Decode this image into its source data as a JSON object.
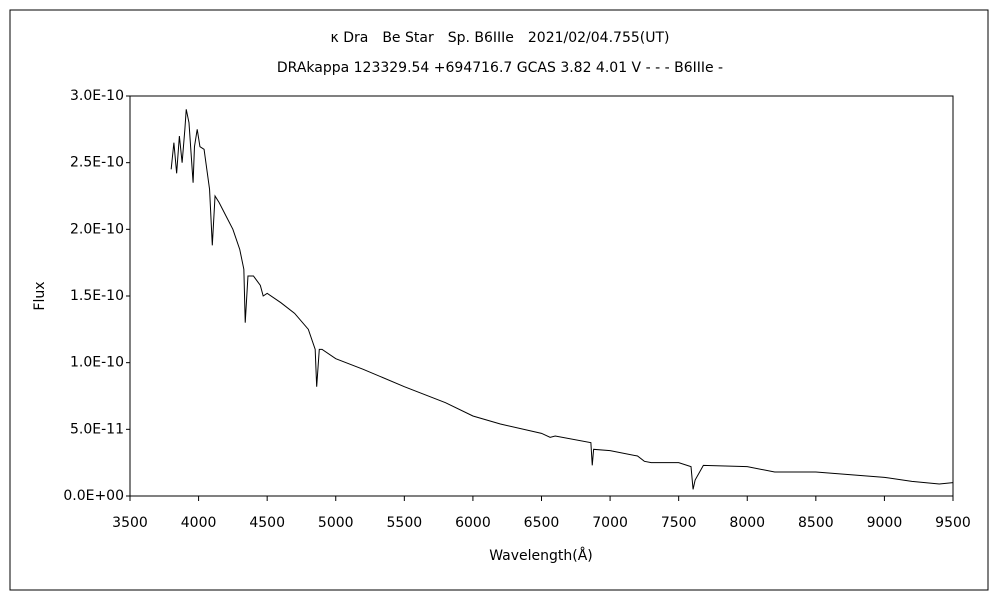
{
  "chart_data": {
    "type": "line",
    "title": "κ Dra　Be Star　Sp. B6IIIe　2021/02/04.755(UT)",
    "subtitle": "DRAkappa 123329.54 +694716.7 GCAS 3.82 4.01 V - - - B6IIIe -",
    "x_label": "Wavelength(Å)",
    "y_label": "Flux",
    "color": "#000000",
    "xlim": [
      3500,
      9500
    ],
    "xticks": [
      3500,
      4000,
      4500,
      5000,
      5500,
      6000,
      6500,
      7000,
      7500,
      8000,
      8500,
      9000,
      9500
    ],
    "ylim": [
      0,
      3e-10
    ],
    "yticks": [
      {
        "value": 0,
        "label": "0.0E+00"
      },
      {
        "value": 5e-11,
        "label": "5.0E-11"
      },
      {
        "value": 1e-10,
        "label": "1.0E-10"
      },
      {
        "value": 1.5e-10,
        "label": "1.5E-10"
      },
      {
        "value": 2e-10,
        "label": "2.0E-10"
      },
      {
        "value": 2.5e-10,
        "label": "2.5E-10"
      },
      {
        "value": 3e-10,
        "label": "3.0E-10"
      }
    ],
    "grid": false,
    "x": [
      3800,
      3820,
      3840,
      3860,
      3880,
      3900,
      3910,
      3930,
      3950,
      3960,
      3970,
      3990,
      4010,
      4040,
      4060,
      4080,
      4100,
      4120,
      4150,
      4200,
      4250,
      4300,
      4330,
      4340,
      4360,
      4400,
      4450,
      4471,
      4500,
      4600,
      4700,
      4800,
      4850,
      4861,
      4880,
      4900,
      5000,
      5200,
      5500,
      5800,
      6000,
      6200,
      6500,
      6563,
      6600,
      6860,
      6870,
      6880,
      7000,
      7200,
      7250,
      7300,
      7500,
      7590,
      7605,
      7620,
      7680,
      8000,
      8200,
      8500,
      9000,
      9200,
      9400,
      9500
    ],
    "values": [
      2.45e-10,
      2.65e-10,
      2.42e-10,
      2.7e-10,
      2.5e-10,
      2.75e-10,
      2.9e-10,
      2.8e-10,
      2.5e-10,
      2.35e-10,
      2.62e-10,
      2.75e-10,
      2.62e-10,
      2.6e-10,
      2.45e-10,
      2.3e-10,
      1.88e-10,
      2.25e-10,
      2.2e-10,
      2.1e-10,
      2e-10,
      1.85e-10,
      1.7e-10,
      1.3e-10,
      1.65e-10,
      1.65e-10,
      1.58e-10,
      1.5e-10,
      1.52e-10,
      1.45e-10,
      1.37e-10,
      1.25e-10,
      1.1e-10,
      8.2e-11,
      1.1e-10,
      1.1e-10,
      1.03e-10,
      9.5e-11,
      8.2e-11,
      7e-11,
      6e-11,
      5.4e-11,
      4.7e-11,
      4.4e-11,
      4.5e-11,
      4e-11,
      2.3e-11,
      3.5e-11,
      3.4e-11,
      3e-11,
      2.6e-11,
      2.5e-11,
      2.5e-11,
      2.2e-11,
      5e-12,
      1.2e-11,
      2.3e-11,
      2.2e-11,
      1.8e-11,
      1.8e-11,
      1.4e-11,
      1.1e-11,
      9e-12,
      1e-11
    ]
  }
}
